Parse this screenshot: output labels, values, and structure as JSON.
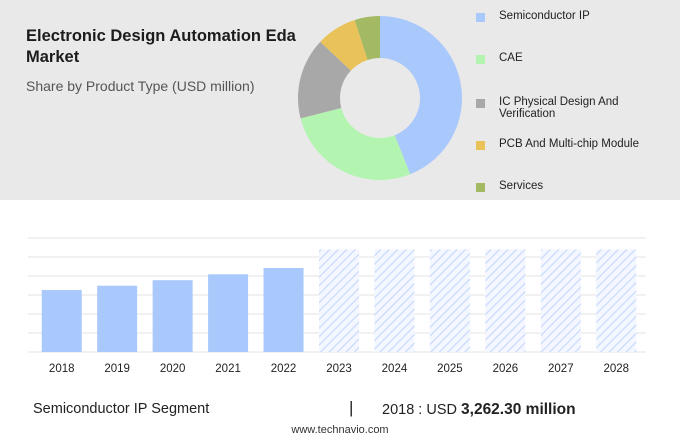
{
  "header": {
    "title": "Electronic Design Automation Eda Market",
    "subtitle": "Share by Product Type (USD million)"
  },
  "chart_data": [
    {
      "type": "pie",
      "variant": "donut",
      "title": "Share by Product Type (USD million)",
      "legend_position": "right",
      "slices": [
        {
          "label": "Semiconductor IP",
          "value": 44,
          "color": "#a9c8fb"
        },
        {
          "label": "CAE",
          "value": 27,
          "color": "#b3f5b0"
        },
        {
          "label": "IC Physical Design And Verification",
          "value": 16,
          "color": "#a8a8a8"
        },
        {
          "label": "PCB And Multi-chip Module",
          "value": 8,
          "color": "#e9c25a"
        },
        {
          "label": "Services",
          "value": 5,
          "color": "#a3b964"
        }
      ]
    },
    {
      "type": "bar",
      "title": "",
      "xlabel": "",
      "ylabel": "",
      "grid": true,
      "categories": [
        "2018",
        "2019",
        "2020",
        "2021",
        "2022",
        "2023",
        "2024",
        "2025",
        "2026",
        "2027",
        "2028"
      ],
      "values": [
        3262.3,
        3490,
        3780,
        4090,
        4420,
        5400,
        5400,
        5400,
        5400,
        5400,
        5400
      ],
      "forecast_from": "2023",
      "ylim": [
        0,
        6000
      ],
      "color": "#a9c8fb"
    }
  ],
  "footer": {
    "segment": "Semiconductor IP Segment",
    "separator": "|",
    "year": "2018",
    "colon": ":",
    "currency": "USD",
    "value": "3,262.30 million",
    "site": "www.technavio.com"
  }
}
